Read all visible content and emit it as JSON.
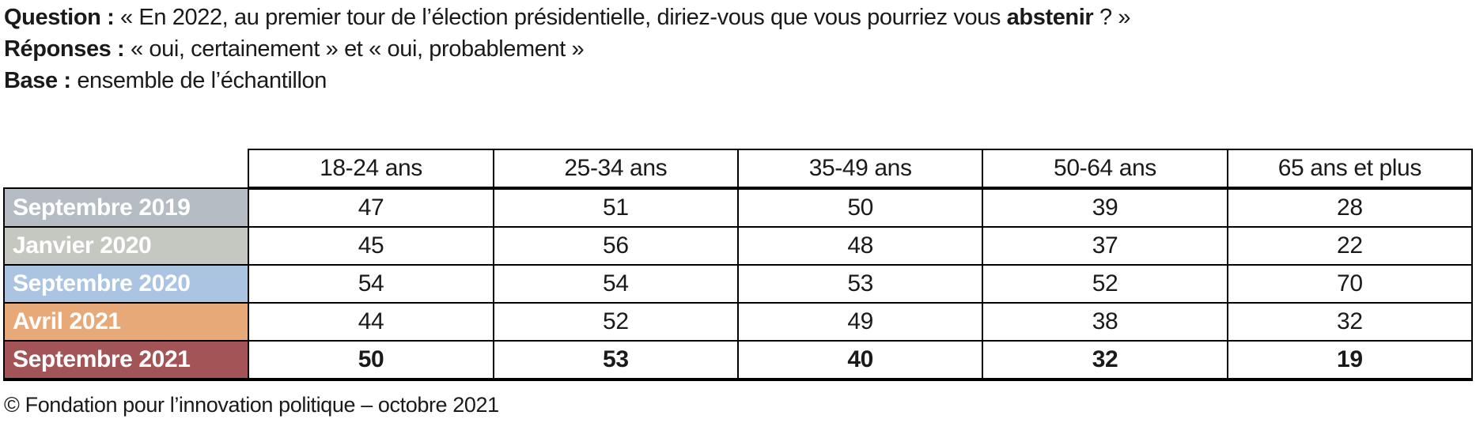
{
  "header": {
    "question_label": "Question :",
    "question_pre": " « En 2022, au premier tour de l’élection présidentielle, diriez-vous que vous pourriez vous ",
    "question_bold": "abstenir",
    "question_post": " ? »",
    "responses_label": "Réponses :",
    "responses_text": " « oui, certainement » et « oui, probablement »",
    "base_label": "Base :",
    "base_text": " ensemble de l’échantillon"
  },
  "table": {
    "columns": [
      "18-24 ans",
      "25-34 ans",
      "35-49 ans",
      "50-64 ans",
      "65 ans et plus"
    ],
    "rows": [
      {
        "label": "Septembre 2019",
        "color": "#b5bcc4",
        "bold": false,
        "values": [
          "47",
          "51",
          "50",
          "39",
          "28"
        ]
      },
      {
        "label": "Janvier 2020",
        "color": "#c5c8c0",
        "bold": false,
        "values": [
          "45",
          "56",
          "48",
          "37",
          "22"
        ]
      },
      {
        "label": "Septembre 2020",
        "color": "#aac4e1",
        "bold": false,
        "values": [
          "54",
          "54",
          "53",
          "52",
          "70"
        ]
      },
      {
        "label": "Avril 2021",
        "color": "#e8a978",
        "bold": false,
        "values": [
          "44",
          "52",
          "49",
          "38",
          "32"
        ]
      },
      {
        "label": "Septembre 2021",
        "color": "#a35457",
        "bold": true,
        "values": [
          "50",
          "53",
          "40",
          "32",
          "19"
        ]
      }
    ],
    "border_color": "#000000",
    "label_text_color": "#ffffff"
  },
  "footer": {
    "credit": "© Fondation pour l’innovation politique – octobre 2021"
  },
  "chart_data": {
    "type": "table",
    "title": "En 2022, au premier tour de l’élection présidentielle, diriez-vous que vous pourriez vous abstenir ? (réponses « oui, certainement » et « oui, probablement », ensemble de l’échantillon)",
    "categories": [
      "18-24 ans",
      "25-34 ans",
      "35-49 ans",
      "50-64 ans",
      "65 ans et plus"
    ],
    "series": [
      {
        "name": "Septembre 2019",
        "values": [
          47,
          51,
          50,
          39,
          28
        ]
      },
      {
        "name": "Janvier 2020",
        "values": [
          45,
          56,
          48,
          37,
          22
        ]
      },
      {
        "name": "Septembre 2020",
        "values": [
          54,
          54,
          53,
          52,
          70
        ]
      },
      {
        "name": "Avril 2021",
        "values": [
          44,
          52,
          49,
          38,
          32
        ]
      },
      {
        "name": "Septembre 2021",
        "values": [
          50,
          53,
          40,
          32,
          19
        ]
      }
    ],
    "source": "© Fondation pour l’innovation politique – octobre 2021"
  }
}
